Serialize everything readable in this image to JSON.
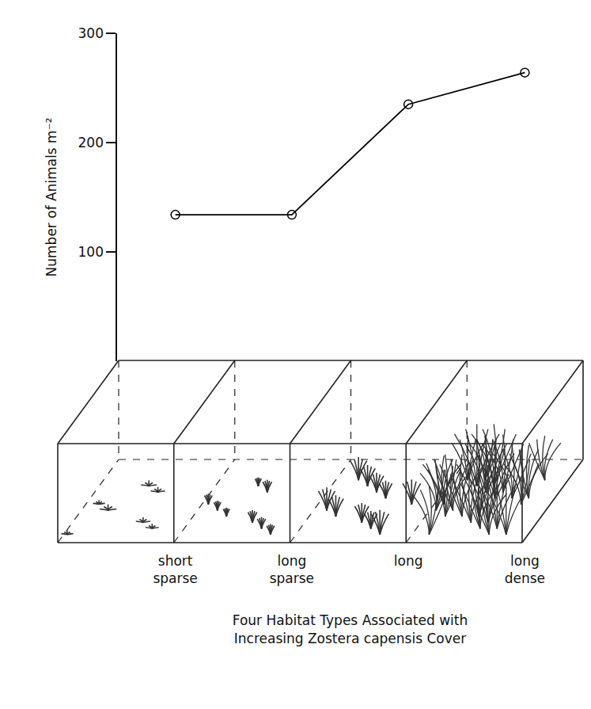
{
  "chart_data": {
    "type": "line",
    "categories": [
      "short sparse",
      "long sparse",
      "long",
      "long dense"
    ],
    "values": [
      134,
      134,
      235,
      264
    ],
    "y_label": "Number of Animals m⁻²",
    "x_label": "Four Habitat Types Associated with Increasing Zostera capensis Cover",
    "ylim": [
      0,
      300
    ],
    "yticks": [
      100,
      200,
      300
    ],
    "color": "#000000",
    "marker": "open circle",
    "line_style": "solid",
    "grid": false
  }
}
